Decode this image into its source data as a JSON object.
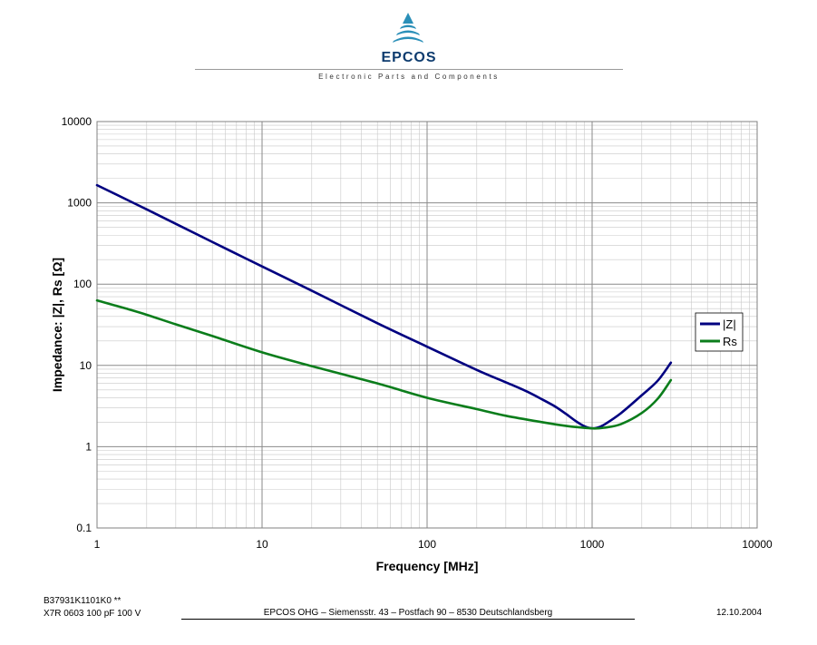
{
  "header": {
    "brand": "EPCOS",
    "tagline": "Electronic Parts and Components"
  },
  "chart_data": {
    "type": "line",
    "x_scale": "log",
    "y_scale": "log",
    "xlim": [
      1,
      10000
    ],
    "ylim": [
      0.1,
      10000
    ],
    "x_ticks": [
      "1",
      "10",
      "100",
      "1000",
      "10000"
    ],
    "y_ticks": [
      "0.1",
      "1",
      "10",
      "100",
      "1000",
      "10000"
    ],
    "xlabel": "Frequency [MHz]",
    "ylabel": "Impedance: |Z|, Rs [Ω]",
    "grid": true,
    "legend_position": "right",
    "series": [
      {
        "name": "|Z|",
        "color": "#000080",
        "points": [
          [
            1,
            1650
          ],
          [
            2,
            830
          ],
          [
            5,
            330
          ],
          [
            10,
            165
          ],
          [
            20,
            83
          ],
          [
            50,
            33
          ],
          [
            100,
            17
          ],
          [
            200,
            8.8
          ],
          [
            300,
            6.2
          ],
          [
            400,
            4.8
          ],
          [
            500,
            3.8
          ],
          [
            600,
            3.1
          ],
          [
            700,
            2.5
          ],
          [
            800,
            2.05
          ],
          [
            900,
            1.78
          ],
          [
            1000,
            1.68
          ],
          [
            1100,
            1.74
          ],
          [
            1200,
            1.9
          ],
          [
            1500,
            2.6
          ],
          [
            2000,
            4.3
          ],
          [
            2500,
            6.5
          ],
          [
            3000,
            10.8
          ]
        ]
      },
      {
        "name": "Rs",
        "color": "#0b7d1b",
        "points": [
          [
            1,
            63
          ],
          [
            1.5,
            50
          ],
          [
            2,
            42
          ],
          [
            3,
            32
          ],
          [
            5,
            23
          ],
          [
            10,
            14.5
          ],
          [
            20,
            9.8
          ],
          [
            50,
            6
          ],
          [
            100,
            4
          ],
          [
            200,
            2.9
          ],
          [
            300,
            2.4
          ],
          [
            500,
            2.0
          ],
          [
            700,
            1.8
          ],
          [
            1000,
            1.68
          ],
          [
            1200,
            1.72
          ],
          [
            1500,
            1.9
          ],
          [
            2000,
            2.6
          ],
          [
            2500,
            3.9
          ],
          [
            3000,
            6.6
          ]
        ]
      }
    ]
  },
  "footer": {
    "part_number": "B37931K1101K0 **",
    "part_spec": "X7R  0603 100 pF 100 V",
    "company": "EPCOS OHG – Siemensstr. 43 – Postfach 90 – 8530 Deutschlandsberg",
    "date": "12.10.2004"
  }
}
